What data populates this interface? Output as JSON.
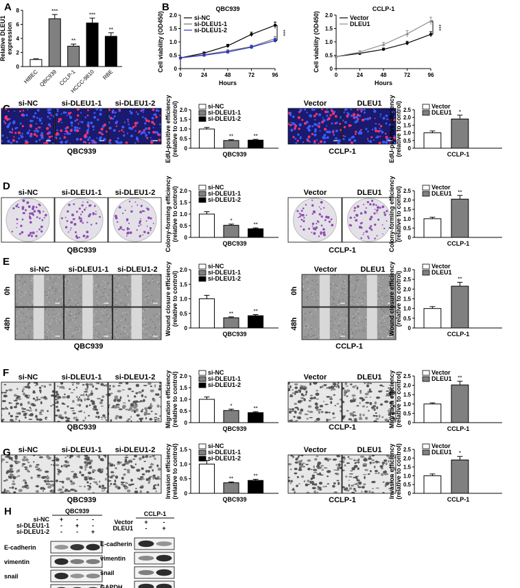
{
  "panel_letters": [
    "A",
    "B",
    "C",
    "D",
    "E",
    "F",
    "G",
    "H"
  ],
  "colors": {
    "white_bar": "#ffffff",
    "grey_bar": "#808080",
    "black_bar": "#000000",
    "si_nc": "#000000",
    "si_dleu1_1": "#707070",
    "si_dleu1_2": "#2a35c8",
    "vector": "#000000",
    "dleu1": "#909090",
    "fluor_bg": "#1a1a6e",
    "crystal": "#8a4fb0"
  },
  "panel_A": {
    "ylabel_line1": "Relative DLEU1",
    "ylabel_line2": "expression",
    "chart_data": {
      "type": "bar",
      "categories": [
        "HIBEC",
        "QBC939",
        "CCLP-1",
        "HCCC-9810",
        "RBE"
      ],
      "values": [
        1.0,
        6.8,
        2.9,
        6.2,
        4.3
      ],
      "errors": [
        0.1,
        0.6,
        0.3,
        0.7,
        0.5
      ],
      "significance": [
        "",
        "***",
        "**",
        "***",
        "**"
      ],
      "yticks": [
        "0",
        "2",
        "4",
        "6",
        "8"
      ],
      "ylim": [
        0,
        8
      ],
      "bar_colors": [
        "#ffffff",
        "#808080",
        "#808080",
        "#000000",
        "#000000"
      ]
    }
  },
  "panel_B": {
    "charts": [
      {
        "title": "QBC939",
        "xlabel": "Hours",
        "ylabel": "Cell viability (OD450)",
        "xticks": [
          "0",
          "24",
          "48",
          "72",
          "96"
        ],
        "yticks": [
          "0",
          "0.5",
          "1.0",
          "1.5",
          "2.0"
        ],
        "significance": "***",
        "chart_data": {
          "type": "line",
          "x": [
            0,
            24,
            48,
            72,
            96
          ],
          "xlim": [
            0,
            96
          ],
          "ylim": [
            0,
            2.0
          ],
          "series": [
            {
              "name": "si-NC",
              "values": [
                0.4,
                0.58,
                0.85,
                1.28,
                1.62
              ],
              "errors": [
                0.03,
                0.04,
                0.06,
                0.08,
                0.12
              ]
            },
            {
              "name": "si-DLEU1-1",
              "values": [
                0.4,
                0.52,
                0.66,
                0.82,
                1.12
              ],
              "errors": [
                0.03,
                0.04,
                0.05,
                0.06,
                0.08
              ]
            },
            {
              "name": "si-DLEU1-2",
              "values": [
                0.4,
                0.5,
                0.62,
                0.8,
                1.05
              ],
              "errors": [
                0.03,
                0.04,
                0.05,
                0.06,
                0.08
              ]
            }
          ]
        }
      },
      {
        "title": "CCLP-1",
        "xlabel": "Hours",
        "ylabel": "Cell viability (OD450)",
        "xticks": [
          "0",
          "24",
          "48",
          "72",
          "96"
        ],
        "yticks": [
          "0",
          "0.5",
          "1.0",
          "1.5",
          "2.0"
        ],
        "significance": "***",
        "chart_data": {
          "type": "line",
          "x": [
            0,
            24,
            48,
            72,
            96
          ],
          "xlim": [
            0,
            96
          ],
          "ylim": [
            0,
            2.0
          ],
          "series": [
            {
              "name": "Vector",
              "values": [
                0.45,
                0.57,
                0.72,
                0.95,
                1.28
              ],
              "errors": [
                0.03,
                0.04,
                0.05,
                0.07,
                0.1
              ]
            },
            {
              "name": "DLEU1",
              "values": [
                0.45,
                0.62,
                0.9,
                1.3,
                1.78
              ],
              "errors": [
                0.03,
                0.05,
                0.08,
                0.12,
                0.14
              ]
            }
          ]
        }
      }
    ]
  },
  "image_rows": {
    "C": {
      "left_labels": [
        "si-NC",
        "si-DLEU1-1",
        "si-DLEU1-2"
      ],
      "left_caption": "QBC939",
      "right_labels": [
        "Vector",
        "DLEU1"
      ],
      "right_caption": "CCLP-1"
    },
    "D": {
      "left_labels": [
        "si-NC",
        "si-DLEU1-1",
        "si-DLEU1-2"
      ],
      "left_caption": "QBC939",
      "right_labels": [
        "Vector",
        "DLEU1"
      ],
      "right_caption": "CCLP-1"
    },
    "E": {
      "left_labels": [
        "si-NC",
        "si-DLEU1-1",
        "si-DLEU1-2"
      ],
      "left_caption": "QBC939",
      "right_labels": [
        "Vector",
        "DLEU1"
      ],
      "right_caption": "CCLP-1",
      "time_labels": [
        "0h",
        "48h"
      ]
    },
    "F": {
      "left_labels": [
        "si-NC",
        "si-DLEU1-1",
        "si-DLEU1-2"
      ],
      "left_caption": "QBC939",
      "right_labels": [
        "Vector",
        "DLEU1"
      ],
      "right_caption": "CCLP-1"
    },
    "G": {
      "left_labels": [
        "si-NC",
        "si-DLEU1-1",
        "si-DLEU1-2"
      ],
      "left_caption": "QBC939",
      "right_labels": [
        "Vector",
        "DLEU1"
      ],
      "right_caption": "CCLP-1"
    }
  },
  "bar_rows": [
    {
      "row": "C",
      "ylabel_line1": "EdU-positive efficiency",
      "ylabel_line2": "(relative to control)",
      "left": {
        "xlabel": "QBC939",
        "legend": [
          "si-NC",
          "si-DLEU1-1",
          "si-DLEU1-2"
        ],
        "yticks": [
          "0",
          "0.5",
          "1.0",
          "1.5",
          "2.0"
        ],
        "chart_data": {
          "type": "bar",
          "ylim": [
            0,
            2.0
          ],
          "values": [
            1.0,
            0.4,
            0.42
          ],
          "errors": [
            0.08,
            0.04,
            0.04
          ],
          "significance": [
            "",
            "**",
            "**"
          ],
          "bar_colors": [
            "#ffffff",
            "#808080",
            "#000000"
          ]
        }
      },
      "right": {
        "xlabel": "CCLP-1",
        "legend": [
          "Vector",
          "DLEU1"
        ],
        "yticks": [
          "0",
          "0.5",
          "1.0",
          "1.5",
          "2.0",
          "2.5"
        ],
        "chart_data": {
          "type": "bar",
          "ylim": [
            0,
            2.5
          ],
          "values": [
            1.0,
            1.9
          ],
          "errors": [
            0.12,
            0.25
          ],
          "significance": [
            "",
            "*"
          ],
          "bar_colors": [
            "#ffffff",
            "#808080"
          ]
        }
      }
    },
    {
      "row": "D",
      "ylabel_line1": "Colony-forming efficiency",
      "ylabel_line2": "(relative to control)",
      "left": {
        "xlabel": "QBC939",
        "legend": [
          "si-NC",
          "si-DLEU1-1",
          "si-DLEU1-2"
        ],
        "yticks": [
          "0",
          "0.5",
          "1.0",
          "1.5",
          "2.0"
        ],
        "chart_data": {
          "type": "bar",
          "ylim": [
            0,
            2.0
          ],
          "values": [
            1.0,
            0.52,
            0.37
          ],
          "errors": [
            0.1,
            0.05,
            0.04
          ],
          "significance": [
            "",
            "*",
            "**"
          ],
          "bar_colors": [
            "#ffffff",
            "#808080",
            "#000000"
          ]
        }
      },
      "right": {
        "xlabel": "CCLP-1",
        "legend": [
          "Vector",
          "DLEU1"
        ],
        "yticks": [
          "0",
          "0.5",
          "1.0",
          "1.5",
          "2.0",
          "2.5"
        ],
        "chart_data": {
          "type": "bar",
          "ylim": [
            0,
            2.5
          ],
          "values": [
            1.0,
            2.05
          ],
          "errors": [
            0.08,
            0.2
          ],
          "significance": [
            "",
            "**"
          ],
          "bar_colors": [
            "#ffffff",
            "#808080"
          ]
        }
      }
    },
    {
      "row": "E",
      "ylabel_line1": "Wound closure efficiency",
      "ylabel_line2": "(relative to control)",
      "left": {
        "xlabel": "QBC939",
        "legend": [
          "si-NC",
          "si-DLEU1-1",
          "si-DLEU1-2"
        ],
        "yticks": [
          "0",
          "0.5",
          "1.0",
          "1.5",
          "2.0"
        ],
        "chart_data": {
          "type": "bar",
          "ylim": [
            0,
            2.0
          ],
          "values": [
            1.0,
            0.35,
            0.42
          ],
          "errors": [
            0.12,
            0.03,
            0.04
          ],
          "significance": [
            "",
            "**",
            "**"
          ],
          "bar_colors": [
            "#ffffff",
            "#808080",
            "#000000"
          ]
        }
      },
      "right": {
        "xlabel": "CCLP-1",
        "legend": [
          "Vector",
          "DLEU1"
        ],
        "yticks": [
          "0",
          "0.5",
          "1.0",
          "1.5",
          "2.0",
          "2.5",
          "3.0"
        ],
        "chart_data": {
          "type": "bar",
          "ylim": [
            0,
            3.0
          ],
          "values": [
            1.0,
            2.15
          ],
          "errors": [
            0.1,
            0.2
          ],
          "significance": [
            "",
            "**"
          ],
          "bar_colors": [
            "#ffffff",
            "#808080"
          ]
        }
      }
    },
    {
      "row": "F",
      "ylabel_line1": "Migration efficiency",
      "ylabel_line2": "(relative to control)",
      "left": {
        "xlabel": "QBC939",
        "legend": [
          "si-NC",
          "si-DLEU1-1",
          "si-DLEU1-2"
        ],
        "yticks": [
          "0",
          "0.5",
          "1.0",
          "1.5",
          "2.0"
        ],
        "chart_data": {
          "type": "bar",
          "ylim": [
            0,
            2.0
          ],
          "values": [
            1.0,
            0.52,
            0.43
          ],
          "errors": [
            0.1,
            0.06,
            0.04
          ],
          "significance": [
            "",
            "*",
            "**"
          ],
          "bar_colors": [
            "#ffffff",
            "#808080",
            "#000000"
          ]
        }
      },
      "right": {
        "xlabel": "CCLP-1",
        "legend": [
          "Vector",
          "DLEU1"
        ],
        "yticks": [
          "0",
          "0.5",
          "1.0",
          "1.5",
          "2.0",
          "2.5"
        ],
        "chart_data": {
          "type": "bar",
          "ylim": [
            0,
            2.5
          ],
          "values": [
            1.0,
            2.02
          ],
          "errors": [
            0.06,
            0.2
          ],
          "significance": [
            "",
            "**"
          ],
          "bar_colors": [
            "#ffffff",
            "#808080"
          ]
        }
      }
    },
    {
      "row": "G",
      "ylabel_line1": "Invasion efficiency",
      "ylabel_line2": "(relative to control)",
      "left": {
        "xlabel": "QBC939",
        "legend": [
          "si-NC",
          "si-DLEU1-1",
          "si-DLEU1-2"
        ],
        "yticks": [
          "0",
          "0.5",
          "1.0",
          "1.5"
        ],
        "chart_data": {
          "type": "bar",
          "ylim": [
            0,
            1.5
          ],
          "values": [
            1.0,
            0.36,
            0.44
          ],
          "errors": [
            0.12,
            0.03,
            0.04
          ],
          "significance": [
            "",
            "**",
            "**"
          ],
          "bar_colors": [
            "#ffffff",
            "#808080",
            "#000000"
          ]
        }
      },
      "right": {
        "xlabel": "CCLP-1",
        "legend": [
          "Vector",
          "DLEU1"
        ],
        "yticks": [
          "0",
          "0.5",
          "1.0",
          "1.5",
          "2.0",
          "2.5"
        ],
        "chart_data": {
          "type": "bar",
          "ylim": [
            0,
            2.5
          ],
          "values": [
            1.0,
            1.9
          ],
          "errors": [
            0.1,
            0.2
          ],
          "significance": [
            "",
            "*"
          ],
          "bar_colors": [
            "#ffffff",
            "#808080"
          ]
        }
      }
    }
  ],
  "panel_H": {
    "left": {
      "cell_line": "QBC939",
      "conditions": [
        {
          "name": "si-NC",
          "marks": [
            "+",
            "-",
            "-"
          ]
        },
        {
          "name": "si-DLEU1-1",
          "marks": [
            "-",
            "+",
            "-"
          ]
        },
        {
          "name": "si-DLEU1-2",
          "marks": [
            "-",
            "-",
            "+"
          ]
        }
      ],
      "proteins": [
        "E-cadherin",
        "vimentin",
        "snail",
        "GAPDH"
      ],
      "band_intensity": [
        [
          0.45,
          0.85,
          0.9
        ],
        [
          0.9,
          0.55,
          0.55
        ],
        [
          0.9,
          0.45,
          0.5
        ],
        [
          0.9,
          0.9,
          0.9
        ]
      ]
    },
    "right": {
      "cell_line": "CCLP-1",
      "conditions": [
        {
          "name": "Vector",
          "marks": [
            "+",
            "-"
          ]
        },
        {
          "name": "DLEU1",
          "marks": [
            "-",
            "+"
          ]
        }
      ],
      "proteins": [
        "E-cadherin",
        "vimentin",
        "snail",
        "GAPDH"
      ],
      "band_intensity": [
        [
          0.9,
          0.45
        ],
        [
          0.5,
          0.9
        ],
        [
          0.55,
          0.9
        ],
        [
          0.9,
          0.9
        ]
      ]
    }
  }
}
